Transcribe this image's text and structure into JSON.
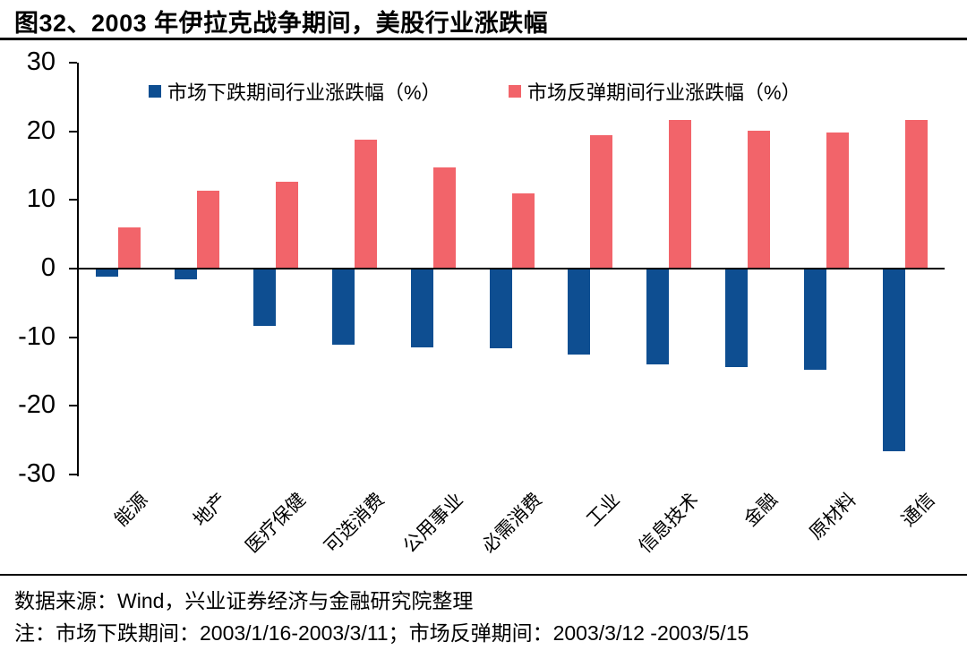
{
  "title": "图32、2003 年伊拉克战争期间，美股行业涨跌幅",
  "chart_data": {
    "type": "bar",
    "title": "图32、2003 年伊拉克战争期间，美股行业涨跌幅",
    "categories": [
      "能源",
      "地产",
      "医疗保健",
      "可选消费",
      "公用事业",
      "必需消费",
      "工业",
      "信息技术",
      "金融",
      "原材料",
      "通信"
    ],
    "series": [
      {
        "name": "市场下跌期间行业涨跌幅（%）",
        "color": "#0E4E91",
        "values": [
          -1.2,
          -1.5,
          -8.4,
          -11.1,
          -11.5,
          -11.6,
          -12.5,
          -14.0,
          -14.3,
          -14.7,
          -26.6
        ]
      },
      {
        "name": "市场反弹期间行业涨跌幅（%）",
        "color": "#F2646A",
        "values": [
          6.0,
          11.3,
          12.7,
          18.8,
          14.7,
          10.9,
          19.4,
          21.6,
          20.1,
          19.8,
          21.7
        ]
      }
    ],
    "xlabel": "",
    "ylabel": "",
    "ylim": [
      -30,
      30
    ],
    "yticks": [
      30,
      20,
      10,
      0,
      -10,
      -20,
      -30
    ],
    "grid": false,
    "legend_position": "top-inside"
  },
  "footer": {
    "source": "数据来源：Wind，兴业证券经济与金融研究院整理",
    "note": "注：市场下跌期间：2003/1/16-2003/3/11；市场反弹期间：2003/3/12 -2003/5/15"
  },
  "colors": {
    "decline_series": "#0E4E91",
    "rebound_series": "#F2646A",
    "axis": "#000000",
    "text": "#000000"
  }
}
